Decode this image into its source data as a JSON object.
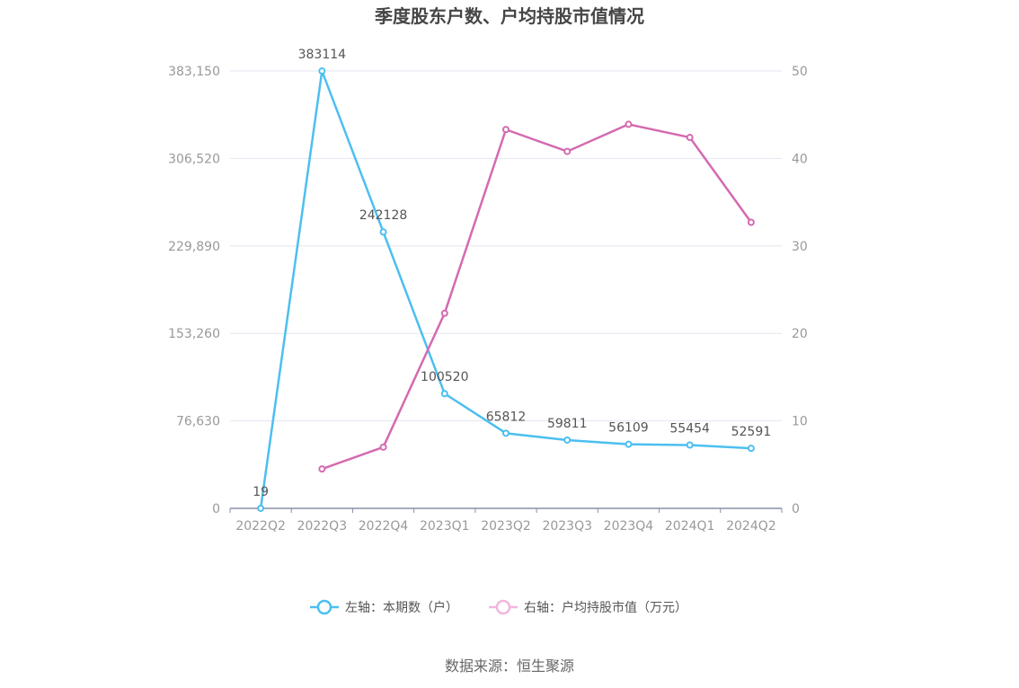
{
  "title": "季度股东户数、户均持股市值情况",
  "source": "数据来源：恒生聚源",
  "colors": {
    "left": "#4cbff0",
    "right": "#d46ab0",
    "grid": "#e3e6f0",
    "axis": "#8a8fa8"
  },
  "chart_data": {
    "type": "line",
    "categories": [
      "2022Q2",
      "2022Q3",
      "2022Q4",
      "2023Q1",
      "2023Q2",
      "2023Q3",
      "2023Q4",
      "2024Q1",
      "2024Q2"
    ],
    "left_axis": {
      "ticks": [
        "0",
        "76,630",
        "153,260",
        "229,890",
        "306,520",
        "383,150"
      ],
      "min": 0,
      "max": 383150
    },
    "right_axis": {
      "ticks": [
        "0",
        "10",
        "20",
        "30",
        "40",
        "50"
      ],
      "min": 0,
      "max": 50
    },
    "series": [
      {
        "name": "左轴：本期数（户）",
        "axis": "left",
        "values": [
          19,
          383114,
          242128,
          100520,
          65812,
          59811,
          56109,
          55454,
          52591
        ],
        "labels": [
          "19",
          "383114",
          "242128",
          "100520",
          "65812",
          "59811",
          "56109",
          "55454",
          "52591"
        ]
      },
      {
        "name": "右轴：户均持股市值（万元）",
        "axis": "right",
        "values": [
          null,
          4.5,
          7.0,
          22.3,
          43.3,
          40.8,
          43.9,
          42.4,
          32.7
        ]
      }
    ],
    "grid": true,
    "legend_position": "bottom"
  }
}
